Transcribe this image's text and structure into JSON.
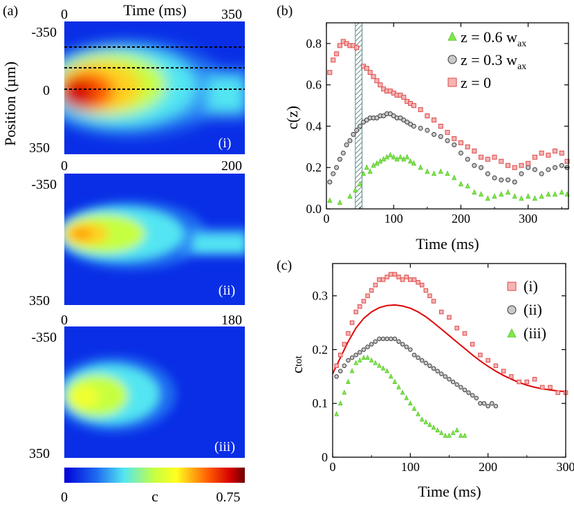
{
  "panel_a": {
    "label": "(a)",
    "time_label": "Time (ms)",
    "position_label": "Position (µm)",
    "colorbar": {
      "min": "0",
      "max": "0.75",
      "label": "c"
    },
    "heatmaps": [
      {
        "id": "i",
        "tag": "(i)",
        "t_start": "0",
        "t_end": "350",
        "pos_top": "-350",
        "pos_mid": "0",
        "pos_bottom": "350"
      },
      {
        "id": "ii",
        "tag": "(ii)",
        "t_start": "0",
        "t_end": "200",
        "pos_top": "-350",
        "pos_bottom": "350"
      },
      {
        "id": "iii",
        "tag": "(iii)",
        "t_start": "0",
        "t_end": "180",
        "pos_top": "-350",
        "pos_bottom": "350"
      }
    ],
    "dashed_line_positions_um": [
      -200,
      -100,
      0
    ]
  },
  "chart_data": [
    {
      "type": "scatter",
      "label": "(b)",
      "xlabel": "Time (ms)",
      "ylabel": "c(z)",
      "xlim": [
        0,
        360
      ],
      "ylim": [
        0,
        0.9
      ],
      "xticks": [
        0,
        100,
        200,
        300
      ],
      "yticks": [
        0.0,
        0.2,
        0.4,
        0.6,
        0.8
      ],
      "xtick_labels": [
        "0",
        "100",
        "200",
        "300"
      ],
      "ytick_labels": [
        "0.0",
        "0.2",
        "0.4",
        "0.6",
        "0.8"
      ],
      "shaded_band_ms": [
        43,
        53
      ],
      "legend_position": "top-right",
      "series": [
        {
          "name": "z = 0.6 w",
          "sub": "ax",
          "marker": "triangle",
          "color": "#7ee84a",
          "stroke": "#5cc42c",
          "x": [
            5,
            20,
            35,
            43,
            50,
            55,
            60,
            65,
            70,
            75,
            80,
            85,
            90,
            95,
            100,
            105,
            110,
            115,
            120,
            125,
            130,
            140,
            150,
            160,
            170,
            180,
            190,
            200,
            210,
            220,
            230,
            240,
            250,
            260,
            270,
            280,
            290,
            300,
            310,
            320,
            330,
            340,
            350,
            358
          ],
          "y": [
            0.04,
            0.03,
            0.06,
            0.09,
            0.12,
            0.17,
            0.2,
            0.18,
            0.21,
            0.22,
            0.23,
            0.24,
            0.25,
            0.26,
            0.25,
            0.24,
            0.25,
            0.24,
            0.25,
            0.23,
            0.22,
            0.2,
            0.18,
            0.17,
            0.18,
            0.17,
            0.15,
            0.12,
            0.11,
            0.08,
            0.07,
            0.05,
            0.06,
            0.07,
            0.08,
            0.06,
            0.05,
            0.06,
            0.05,
            0.06,
            0.07,
            0.07,
            0.08,
            0.07
          ]
        },
        {
          "name": "z = 0.3 w",
          "sub": "ax",
          "marker": "circle",
          "color": "#c9c9c9",
          "stroke": "#3a3a3a",
          "x": [
            5,
            10,
            15,
            20,
            25,
            30,
            35,
            40,
            45,
            50,
            55,
            60,
            65,
            70,
            75,
            80,
            85,
            90,
            95,
            100,
            105,
            110,
            115,
            120,
            125,
            130,
            140,
            150,
            160,
            170,
            180,
            190,
            200,
            210,
            220,
            230,
            240,
            250,
            260,
            270,
            280,
            290,
            300,
            310,
            320,
            330,
            340,
            350,
            358
          ],
          "y": [
            0.13,
            0.17,
            0.2,
            0.24,
            0.27,
            0.31,
            0.33,
            0.36,
            0.38,
            0.4,
            0.42,
            0.43,
            0.44,
            0.44,
            0.44,
            0.45,
            0.45,
            0.46,
            0.46,
            0.45,
            0.44,
            0.44,
            0.43,
            0.42,
            0.41,
            0.4,
            0.39,
            0.38,
            0.36,
            0.35,
            0.33,
            0.31,
            0.27,
            0.24,
            0.21,
            0.2,
            0.17,
            0.15,
            0.14,
            0.14,
            0.13,
            0.17,
            0.2,
            0.19,
            0.17,
            0.19,
            0.2,
            0.21,
            0.2
          ]
        },
        {
          "name": "z = 0",
          "sub": "",
          "marker": "square",
          "color": "#f4b5b5",
          "stroke": "#e04848",
          "x": [
            5,
            10,
            15,
            20,
            25,
            30,
            35,
            40,
            45,
            55,
            60,
            65,
            70,
            75,
            80,
            85,
            90,
            95,
            100,
            105,
            110,
            115,
            120,
            125,
            130,
            140,
            150,
            160,
            170,
            180,
            190,
            200,
            210,
            220,
            230,
            240,
            250,
            260,
            270,
            280,
            290,
            300,
            310,
            320,
            330,
            340,
            350,
            358
          ],
          "y": [
            0.66,
            0.72,
            0.75,
            0.79,
            0.81,
            0.8,
            0.79,
            0.79,
            0.78,
            0.69,
            0.68,
            0.66,
            0.64,
            0.62,
            0.6,
            0.58,
            0.57,
            0.57,
            0.56,
            0.55,
            0.55,
            0.54,
            0.52,
            0.51,
            0.5,
            0.48,
            0.45,
            0.43,
            0.4,
            0.37,
            0.34,
            0.32,
            0.3,
            0.28,
            0.25,
            0.24,
            0.25,
            0.23,
            0.21,
            0.2,
            0.21,
            0.22,
            0.25,
            0.27,
            0.26,
            0.28,
            0.27,
            0.23
          ]
        }
      ]
    },
    {
      "type": "scatter",
      "label": "(c)",
      "xlabel": "Time (ms)",
      "ylabel": "c",
      "ylabel_sub": "tot",
      "xlim": [
        0,
        300
      ],
      "ylim": [
        0,
        0.36
      ],
      "xticks": [
        0,
        100,
        200,
        300
      ],
      "yticks": [
        0,
        0.1,
        0.2,
        0.3
      ],
      "xtick_labels": [
        "0",
        "100",
        "200",
        "300"
      ],
      "ytick_labels": [
        "0",
        "0.1",
        "0.2",
        "0.3"
      ],
      "legend_position": "top-right",
      "series": [
        {
          "name": "(i)",
          "marker": "square",
          "color": "#f4b5b5",
          "stroke": "#e04848",
          "x": [
            5,
            10,
            15,
            20,
            25,
            30,
            35,
            40,
            45,
            50,
            55,
            60,
            65,
            70,
            75,
            80,
            85,
            90,
            95,
            100,
            105,
            110,
            115,
            120,
            125,
            130,
            140,
            150,
            160,
            170,
            180,
            190,
            200,
            210,
            220,
            230,
            240,
            250,
            260,
            270,
            280,
            290,
            300
          ],
          "y": [
            0.17,
            0.19,
            0.21,
            0.23,
            0.25,
            0.27,
            0.28,
            0.29,
            0.3,
            0.31,
            0.32,
            0.33,
            0.33,
            0.335,
            0.34,
            0.34,
            0.335,
            0.33,
            0.335,
            0.33,
            0.33,
            0.325,
            0.32,
            0.31,
            0.3,
            0.29,
            0.27,
            0.26,
            0.24,
            0.23,
            0.21,
            0.19,
            0.18,
            0.17,
            0.16,
            0.15,
            0.14,
            0.14,
            0.145,
            0.13,
            0.13,
            0.12,
            0.12
          ]
        },
        {
          "name": "(ii)",
          "marker": "circle",
          "color": "#c9c9c9",
          "stroke": "#3a3a3a",
          "x": [
            5,
            10,
            15,
            20,
            25,
            30,
            35,
            40,
            45,
            50,
            55,
            60,
            65,
            70,
            75,
            80,
            85,
            90,
            95,
            100,
            105,
            110,
            115,
            120,
            125,
            130,
            135,
            140,
            145,
            150,
            155,
            160,
            165,
            170,
            175,
            180,
            185,
            190,
            195,
            200,
            205,
            210
          ],
          "y": [
            0.15,
            0.16,
            0.17,
            0.18,
            0.185,
            0.19,
            0.195,
            0.2,
            0.205,
            0.21,
            0.215,
            0.22,
            0.22,
            0.22,
            0.22,
            0.22,
            0.215,
            0.21,
            0.205,
            0.2,
            0.19,
            0.185,
            0.18,
            0.175,
            0.17,
            0.165,
            0.16,
            0.155,
            0.15,
            0.145,
            0.14,
            0.135,
            0.13,
            0.125,
            0.12,
            0.115,
            0.11,
            0.1,
            0.1,
            0.095,
            0.1,
            0.095
          ]
        },
        {
          "name": "(iii)",
          "marker": "triangle",
          "color": "#7ee84a",
          "stroke": "#5cc42c",
          "x": [
            5,
            10,
            15,
            20,
            25,
            30,
            35,
            40,
            45,
            50,
            55,
            60,
            65,
            70,
            75,
            80,
            85,
            90,
            95,
            100,
            105,
            110,
            115,
            120,
            125,
            130,
            135,
            140,
            145,
            150,
            155,
            160,
            165,
            170
          ],
          "y": [
            0.08,
            0.1,
            0.12,
            0.14,
            0.16,
            0.175,
            0.18,
            0.185,
            0.185,
            0.18,
            0.175,
            0.17,
            0.165,
            0.16,
            0.15,
            0.14,
            0.13,
            0.12,
            0.11,
            0.1,
            0.09,
            0.08,
            0.07,
            0.065,
            0.06,
            0.055,
            0.05,
            0.045,
            0.04,
            0.04,
            0.045,
            0.05,
            0.04,
            0.04
          ]
        }
      ],
      "fit_curve": {
        "name": "fit",
        "color": "#e00000",
        "x": [
          0,
          10,
          20,
          30,
          40,
          50,
          60,
          70,
          80,
          90,
          100,
          110,
          120,
          130,
          140,
          150,
          160,
          170,
          180,
          190,
          200,
          210,
          220,
          230,
          240,
          250,
          260,
          270,
          280,
          290,
          300
        ],
        "y": [
          0.155,
          0.185,
          0.215,
          0.24,
          0.258,
          0.27,
          0.278,
          0.282,
          0.283,
          0.281,
          0.277,
          0.27,
          0.261,
          0.25,
          0.238,
          0.226,
          0.214,
          0.202,
          0.19,
          0.179,
          0.169,
          0.16,
          0.152,
          0.145,
          0.139,
          0.134,
          0.13,
          0.127,
          0.125,
          0.123,
          0.122
        ]
      }
    }
  ]
}
